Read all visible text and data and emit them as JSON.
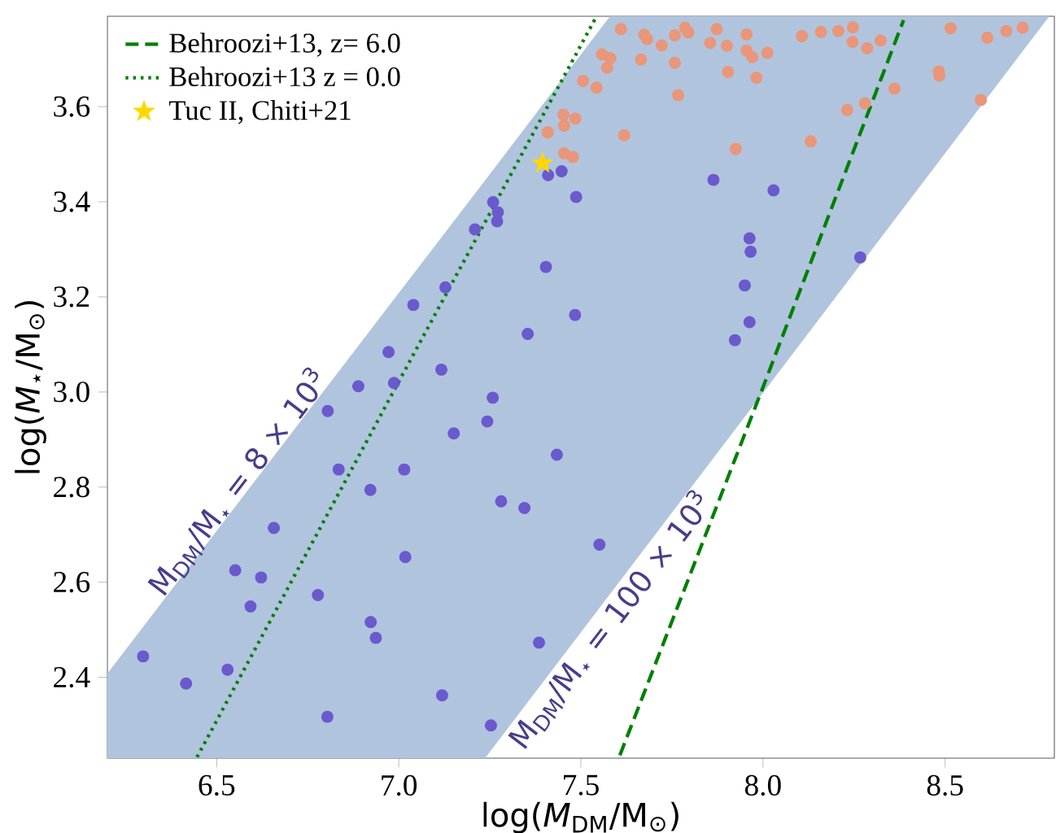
{
  "chart_data": {
    "type": "scatter",
    "xlabel": "log(*M*$_{DM}$/M$_{⊙}$)",
    "ylabel": "log(*M*$_{⋆}$/M$_{⊙}$)",
    "xlim": [
      6.2,
      8.8
    ],
    "ylim": [
      2.23,
      3.79
    ],
    "xticks": [
      6.5,
      {
        "value": 7.0,
        "label": "7.0"
      },
      7.5,
      {
        "value": 8.0,
        "label": "8.0"
      },
      8.5
    ],
    "yticks": [
      2.4,
      2.6,
      2.8,
      {
        "value": 3.0,
        "label": "3.0"
      },
      3.2,
      3.4,
      3.6
    ],
    "grid": false,
    "legend": "top left",
    "annotations": [
      "M$_{DM}$/M$_{⋆}$ = 8 × 10$^{3}$",
      "M$_{DM}$/M$_{⋆}$ = 100 × 10$^{3}$"
    ],
    "series": [
      {
        "type": "area",
        "color": "#b0c4de",
        "x": [
          6.2,
          7.237,
          7.58,
          8.786
        ],
        "values": [
          null,
          null,
          null,
          null
        ],
        "lower": [
          2.23,
          2.23,
          2.575,
          3.79
        ],
        "upper": [
          2.408,
          3.445,
          3.79,
          3.79
        ]
      },
      {
        "marker": "circle",
        "color": "#6a5acd",
        "x": [
          7.41,
          7.447,
          7.487,
          7.259,
          7.272,
          7.27,
          7.209,
          7.404,
          7.484,
          7.354,
          7.128,
          7.04,
          6.972,
          7.117,
          6.889,
          6.987,
          6.805,
          7.258,
          7.243,
          7.151,
          7.434,
          6.835,
          7.015,
          6.922,
          7.281,
          7.345,
          6.657,
          7.018,
          6.551,
          6.622,
          6.593,
          6.778,
          6.923,
          6.937,
          7.385,
          6.298,
          6.416,
          6.53,
          7.119,
          6.804,
          7.253,
          7.551,
          7.864,
          8.029,
          7.963,
          7.966,
          7.95,
          7.963,
          7.923,
          8.267
        ],
        "values": [
          3.456,
          3.464,
          3.41,
          3.399,
          3.378,
          3.359,
          3.342,
          3.263,
          3.162,
          3.122,
          3.22,
          3.183,
          3.084,
          3.047,
          3.012,
          3.019,
          2.96,
          2.988,
          2.938,
          2.913,
          2.868,
          2.837,
          2.837,
          2.794,
          2.77,
          2.756,
          2.714,
          2.653,
          2.625,
          2.61,
          2.549,
          2.573,
          2.516,
          2.483,
          2.473,
          2.444,
          2.387,
          2.416,
          2.362,
          2.317,
          2.299,
          2.679,
          3.446,
          3.424,
          3.323,
          3.295,
          3.224,
          3.147,
          3.109,
          3.283
        ]
      },
      {
        "marker": "circle",
        "color": "#e9967a",
        "x": [
          7.61,
          7.674,
          7.682,
          7.722,
          7.758,
          7.786,
          7.795,
          7.873,
          7.855,
          7.901,
          7.955,
          7.955,
          7.971,
          8.012,
          7.558,
          7.581,
          7.572,
          7.665,
          7.758,
          7.506,
          7.543,
          7.904,
          7.982,
          7.767,
          7.452,
          7.485,
          7.454,
          7.409,
          7.619,
          7.454,
          7.478,
          7.925,
          8.131,
          8.107,
          8.159,
          8.207,
          8.247,
          8.246,
          8.286,
          8.323,
          8.361,
          8.28,
          8.231,
          8.483,
          8.484,
          8.515,
          8.616,
          8.668,
          8.713,
          8.598
        ],
        "values": [
          3.763,
          3.751,
          3.742,
          3.729,
          3.75,
          3.766,
          3.756,
          3.763,
          3.734,
          3.728,
          3.752,
          3.718,
          3.704,
          3.713,
          3.71,
          3.702,
          3.682,
          3.699,
          3.692,
          3.654,
          3.64,
          3.673,
          3.661,
          3.624,
          3.583,
          3.575,
          3.56,
          3.546,
          3.54,
          3.502,
          3.494,
          3.511,
          3.527,
          3.748,
          3.757,
          3.759,
          3.767,
          3.736,
          3.723,
          3.739,
          3.638,
          3.607,
          3.593,
          3.674,
          3.665,
          3.765,
          3.745,
          3.759,
          3.766,
          3.614
        ]
      },
      {
        "type": "line",
        "name": "Behroozi+13, z= 6.0",
        "color": "#008000",
        "line_style": "dashed",
        "x": [
          7.607,
          8.0,
          8.386
        ],
        "values": [
          2.236,
          3.01,
          3.782
        ]
      },
      {
        "type": "line",
        "name": "Behroozi+13 z = 0.0",
        "color": "#008000",
        "line_style": "dotted",
        "x": [
          6.446,
          7.01,
          7.543
        ],
        "values": [
          2.232,
          3.036,
          3.79
        ]
      },
      {
        "type": "scatter",
        "name": "Tuc II, Chiti+21",
        "color": "#ffd700",
        "marker": "star",
        "x": [
          7.395
        ],
        "values": [
          3.481
        ]
      }
    ]
  }
}
